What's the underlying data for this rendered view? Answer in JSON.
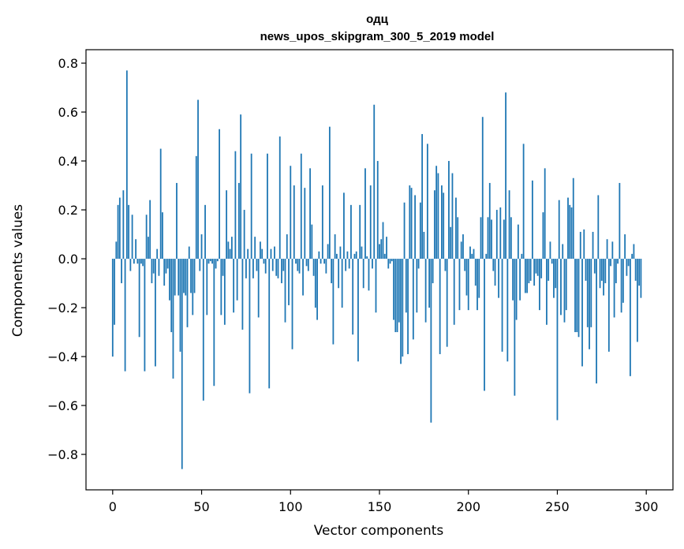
{
  "chart_data": {
    "type": "bar",
    "title": "одц",
    "subtitle": "news_upos_skipgram_300_5_2019 model",
    "xlabel": "Vector components",
    "ylabel": "Components values",
    "xlim": [
      -15,
      315
    ],
    "ylim": [
      -0.945,
      0.855
    ],
    "xticks": [
      0,
      50,
      100,
      150,
      200,
      250,
      300
    ],
    "xtick_labels": [
      "0",
      "50",
      "100",
      "150",
      "200",
      "250",
      "300"
    ],
    "yticks": [
      -0.8,
      -0.6,
      -0.4,
      -0.2,
      0.0,
      0.2,
      0.4,
      0.6,
      0.8
    ],
    "ytick_labels": [
      "−0.8",
      "−0.6",
      "−0.4",
      "−0.2",
      "0.0",
      "0.2",
      "0.4",
      "0.6",
      "0.8"
    ],
    "grid": false,
    "bar_color": "#1f77b4",
    "values": [
      -0.4,
      -0.27,
      0.07,
      0.22,
      0.25,
      -0.1,
      0.28,
      -0.46,
      0.77,
      0.22,
      -0.05,
      0.18,
      -0.02,
      0.08,
      -0.02,
      -0.32,
      -0.02,
      -0.03,
      -0.46,
      0.18,
      0.09,
      0.24,
      -0.1,
      -0.06,
      -0.44,
      0.04,
      -0.07,
      0.45,
      0.19,
      -0.11,
      -0.06,
      -0.04,
      -0.17,
      -0.3,
      -0.49,
      -0.15,
      0.31,
      -0.15,
      -0.38,
      -0.86,
      -0.14,
      -0.15,
      -0.28,
      0.05,
      -0.14,
      -0.23,
      -0.14,
      0.42,
      0.65,
      -0.05,
      0.1,
      -0.58,
      0.22,
      -0.23,
      -0.02,
      -0.01,
      -0.02,
      -0.52,
      -0.04,
      -0.01,
      0.53,
      -0.23,
      -0.07,
      -0.27,
      0.28,
      0.07,
      0.04,
      0.09,
      -0.22,
      0.44,
      -0.17,
      0.31,
      0.59,
      -0.29,
      0.2,
      -0.08,
      0.04,
      -0.55,
      0.43,
      -0.08,
      0.09,
      -0.05,
      -0.24,
      0.07,
      0.04,
      -0.02,
      -0.06,
      0.43,
      -0.53,
      0.04,
      -0.05,
      0.05,
      -0.07,
      -0.08,
      0.5,
      -0.1,
      -0.05,
      -0.26,
      0.1,
      -0.19,
      0.38,
      -0.37,
      0.3,
      -0.02,
      -0.05,
      -0.06,
      0.43,
      -0.15,
      0.29,
      -0.03,
      -0.05,
      0.37,
      0.14,
      -0.07,
      -0.2,
      -0.25,
      0.03,
      -0.02,
      0.3,
      -0.02,
      -0.06,
      0.06,
      0.54,
      -0.1,
      -0.35,
      0.1,
      0.02,
      -0.12,
      0.05,
      -0.2,
      0.27,
      -0.05,
      0.03,
      -0.04,
      0.22,
      -0.31,
      0.02,
      0.03,
      -0.42,
      0.22,
      0.05,
      -0.12,
      0.37,
      0.01,
      -0.13,
      0.3,
      -0.04,
      0.63,
      -0.22,
      0.4,
      0.06,
      0.08,
      0.15,
      0.02,
      0.09,
      -0.04,
      -0.02,
      -0.01,
      -0.25,
      -0.3,
      -0.3,
      -0.26,
      -0.43,
      -0.4,
      0.23,
      -0.22,
      -0.39,
      0.3,
      0.29,
      -0.33,
      0.26,
      -0.22,
      -0.04,
      0.23,
      0.51,
      0.11,
      -0.26,
      0.47,
      -0.2,
      -0.67,
      -0.1,
      0.28,
      0.38,
      0.35,
      -0.39,
      0.3,
      0.27,
      -0.05,
      -0.36,
      0.4,
      0.13,
      0.35,
      -0.27,
      0.25,
      0.17,
      -0.21,
      0.07,
      0.1,
      -0.05,
      -0.15,
      -0.21,
      0.05,
      0.02,
      0.04,
      -0.11,
      -0.21,
      -0.16,
      0.17,
      0.58,
      -0.54,
      0.02,
      0.17,
      0.31,
      0.16,
      -0.05,
      -0.11,
      0.2,
      -0.16,
      0.21,
      -0.38,
      0.16,
      0.68,
      -0.42,
      0.28,
      0.17,
      -0.17,
      -0.56,
      -0.25,
      0.14,
      -0.17,
      0.02,
      0.47,
      -0.14,
      -0.14,
      -0.1,
      -0.09,
      0.32,
      -0.11,
      -0.06,
      -0.07,
      -0.21,
      -0.08,
      0.19,
      0.37,
      -0.27,
      -0.09,
      0.07,
      -0.02,
      -0.16,
      -0.12,
      -0.66,
      0.24,
      -0.23,
      0.06,
      -0.26,
      -0.21,
      0.25,
      0.22,
      0.21,
      0.33,
      -0.3,
      -0.3,
      -0.32,
      0.11,
      -0.44,
      0.12,
      -0.09,
      -0.28,
      -0.37,
      -0.28,
      0.11,
      -0.06,
      -0.51,
      0.26,
      -0.12,
      -0.09,
      -0.15,
      -0.1,
      0.08,
      -0.38,
      -0.03,
      0.07,
      -0.24,
      -0.1,
      -0.02,
      0.31,
      -0.22,
      -0.18,
      0.1,
      -0.07,
      -0.03,
      -0.48,
      0.02,
      0.06,
      -0.09,
      -0.34,
      -0.11,
      -0.16
    ]
  }
}
